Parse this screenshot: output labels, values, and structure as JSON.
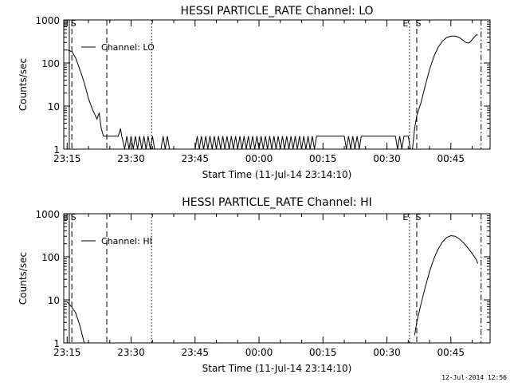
{
  "chart_data": [
    {
      "type": "line",
      "title": "HESSI PARTICLE_RATE Channel: LO",
      "xlabel": "Start Time (11-Jul-14 23:14:10)",
      "ylabel": "Counts/sec",
      "xlim_minutes": [
        0,
        100
      ],
      "ylim": [
        1,
        1000
      ],
      "yscale": "log",
      "x_ticks": [
        {
          "minute": 0,
          "label": "23:15"
        },
        {
          "minute": 15,
          "label": "23:30"
        },
        {
          "minute": 30,
          "label": "23:45"
        },
        {
          "minute": 45,
          "label": "00:00"
        },
        {
          "minute": 60,
          "label": "00:15"
        },
        {
          "minute": 75,
          "label": "00:30"
        },
        {
          "minute": 90,
          "label": "00:45"
        }
      ],
      "y_ticks": [
        {
          "value": 1,
          "label": "1"
        },
        {
          "value": 10,
          "label": "10"
        },
        {
          "value": 100,
          "label": "100"
        },
        {
          "value": 1000,
          "label": "1000"
        }
      ],
      "legend": {
        "label": "Channel: LO",
        "position": "top-left"
      },
      "markers": [
        {
          "minute": -0.3,
          "style": "solid",
          "label": "E"
        },
        {
          "minute": 0.3,
          "style": "dashed",
          "label": "S"
        },
        {
          "minute": 8.5,
          "style": "dashed",
          "label": ""
        },
        {
          "minute": 19.0,
          "style": "dotted",
          "label": ""
        },
        {
          "minute": 79.5,
          "style": "dotted",
          "label": "E"
        },
        {
          "minute": 81.2,
          "style": "dashed",
          "label": "S"
        },
        {
          "minute": 96.3,
          "style": "dashdot",
          "label": ""
        }
      ],
      "series": [
        {
          "points": [
            [
              0,
              200
            ],
            [
              0.5,
              195
            ],
            [
              1.2,
              180
            ],
            [
              2,
              130
            ],
            [
              3,
              70
            ],
            [
              4,
              35
            ],
            [
              5,
              15
            ],
            [
              6,
              8
            ],
            [
              7,
              5
            ],
            [
              7.5,
              7
            ],
            [
              8,
              3
            ],
            [
              8.5,
              2
            ],
            [
              10,
              2
            ],
            [
              11,
              2
            ],
            [
              12,
              2
            ],
            [
              12.5,
              3
            ],
            [
              12.8,
              2
            ],
            [
              13.5,
              1
            ],
            [
              14,
              2
            ],
            [
              14.5,
              1
            ],
            [
              15,
              2
            ],
            [
              15.5,
              1
            ],
            [
              16,
              2
            ],
            [
              16.5,
              1
            ],
            [
              17,
              2
            ],
            [
              17.5,
              1
            ],
            [
              18,
              2
            ],
            [
              18.5,
              1
            ],
            [
              19,
              2
            ],
            [
              19.5,
              1
            ],
            [
              20,
              2
            ],
            [
              20.5,
              1
            ],
            [
              21,
              1
            ],
            [
              22,
              1
            ],
            [
              22.5,
              2
            ],
            [
              23,
              1
            ],
            [
              23.5,
              2
            ],
            [
              24,
              1
            ],
            [
              25,
              1
            ],
            [
              26,
              1
            ],
            [
              27,
              1
            ],
            [
              28,
              1
            ],
            [
              29,
              1
            ],
            [
              30,
              1
            ],
            [
              30.5,
              2
            ],
            [
              31,
              1
            ],
            [
              31.5,
              2
            ],
            [
              32,
              1
            ],
            [
              32.5,
              2
            ],
            [
              33,
              1
            ],
            [
              33.5,
              2
            ],
            [
              34,
              1
            ],
            [
              34.5,
              2
            ],
            [
              35,
              1
            ],
            [
              35.5,
              2
            ],
            [
              36,
              1
            ],
            [
              36.5,
              2
            ],
            [
              37,
              1
            ],
            [
              37.5,
              2
            ],
            [
              38,
              1
            ],
            [
              38.5,
              2
            ],
            [
              39,
              1
            ],
            [
              39.5,
              2
            ],
            [
              40,
              1
            ],
            [
              40.5,
              2
            ],
            [
              41,
              1
            ],
            [
              41.5,
              2
            ],
            [
              42,
              1
            ],
            [
              42.5,
              2
            ],
            [
              43,
              1
            ],
            [
              43.5,
              2
            ],
            [
              44,
              1
            ],
            [
              44.5,
              2
            ],
            [
              45,
              1
            ],
            [
              45.5,
              2
            ],
            [
              46,
              1
            ],
            [
              46.5,
              2
            ],
            [
              47,
              1
            ],
            [
              47.5,
              2
            ],
            [
              48,
              1
            ],
            [
              48.5,
              2
            ],
            [
              49,
              1
            ],
            [
              49.5,
              2
            ],
            [
              50,
              1
            ],
            [
              50.5,
              2
            ],
            [
              51,
              1
            ],
            [
              51.5,
              2
            ],
            [
              52,
              1
            ],
            [
              52.5,
              2
            ],
            [
              53,
              1
            ],
            [
              53.5,
              2
            ],
            [
              54,
              1
            ],
            [
              54.5,
              2
            ],
            [
              55,
              1
            ],
            [
              55.5,
              2
            ],
            [
              56,
              1
            ],
            [
              56.5,
              2
            ],
            [
              57,
              1
            ],
            [
              57.5,
              2
            ],
            [
              58,
              1
            ],
            [
              58.5,
              2
            ],
            [
              59,
              2
            ],
            [
              60,
              2
            ],
            [
              61,
              2
            ],
            [
              62,
              2
            ],
            [
              63,
              2
            ],
            [
              64,
              2
            ],
            [
              65,
              2
            ],
            [
              65.5,
              1
            ],
            [
              66,
              2
            ],
            [
              66.5,
              1
            ],
            [
              67,
              2
            ],
            [
              67.5,
              1
            ],
            [
              68,
              2
            ],
            [
              68.5,
              1
            ],
            [
              69,
              2
            ],
            [
              70,
              2
            ],
            [
              71,
              2
            ],
            [
              72,
              2
            ],
            [
              73,
              2
            ],
            [
              74,
              2
            ],
            [
              75,
              2
            ],
            [
              76,
              2
            ],
            [
              77,
              2
            ],
            [
              77.5,
              1
            ],
            [
              78,
              2
            ],
            [
              78.5,
              1
            ],
            [
              79,
              2
            ],
            [
              80,
              2
            ],
            [
              80.5,
              1
            ],
            [
              81,
              1
            ],
            [
              81.5,
              3
            ],
            [
              82,
              6
            ],
            [
              83,
              12
            ],
            [
              84,
              30
            ],
            [
              85,
              70
            ],
            [
              86,
              140
            ],
            [
              87,
              230
            ],
            [
              88,
              320
            ],
            [
              89,
              390
            ],
            [
              90,
              420
            ],
            [
              91,
              420
            ],
            [
              92,
              390
            ],
            [
              93,
              330
            ],
            [
              93.5,
              300
            ],
            [
              94,
              290
            ],
            [
              94.5,
              300
            ],
            [
              95,
              350
            ],
            [
              95.5,
              400
            ],
            [
              96,
              450
            ],
            [
              96.3,
              450
            ]
          ]
        }
      ]
    },
    {
      "type": "line",
      "title": "HESSI PARTICLE_RATE Channel: HI",
      "xlabel": "Start Time (11-Jul-14 23:14:10)",
      "ylabel": "Counts/sec",
      "xlim_minutes": [
        0,
        100
      ],
      "ylim": [
        1,
        1000
      ],
      "yscale": "log",
      "x_ticks": [
        {
          "minute": 0,
          "label": "23:15"
        },
        {
          "minute": 15,
          "label": "23:30"
        },
        {
          "minute": 30,
          "label": "23:45"
        },
        {
          "minute": 45,
          "label": "00:00"
        },
        {
          "minute": 60,
          "label": "00:15"
        },
        {
          "minute": 75,
          "label": "00:30"
        },
        {
          "minute": 90,
          "label": "00:45"
        }
      ],
      "y_ticks": [
        {
          "value": 1,
          "label": "1"
        },
        {
          "value": 10,
          "label": "10"
        },
        {
          "value": 100,
          "label": "100"
        },
        {
          "value": 1000,
          "label": "1000"
        }
      ],
      "legend": {
        "label": "Channel: HI",
        "position": "top-left"
      },
      "markers": [
        {
          "minute": -0.3,
          "style": "solid",
          "label": "E"
        },
        {
          "minute": 0.3,
          "style": "dashed",
          "label": "S"
        },
        {
          "minute": 8.5,
          "style": "dashed",
          "label": ""
        },
        {
          "minute": 19.0,
          "style": "dotted",
          "label": ""
        },
        {
          "minute": 79.5,
          "style": "dotted",
          "label": "E"
        },
        {
          "minute": 81.2,
          "style": "dashed",
          "label": "S"
        },
        {
          "minute": 96.3,
          "style": "dashdot",
          "label": ""
        }
      ],
      "series": [
        {
          "points_segments": [
            [
              [
                0,
                9
              ],
              [
                1,
                7
              ],
              [
                2,
                5
              ],
              [
                3,
                2.5
              ],
              [
                4,
                1
              ]
            ],
            [
              [
                81.5,
                1.5
              ],
              [
                82,
                3
              ],
              [
                83,
                8
              ],
              [
                84,
                20
              ],
              [
                85,
                45
              ],
              [
                86,
                90
              ],
              [
                87,
                150
              ],
              [
                88,
                220
              ],
              [
                89,
                280
              ],
              [
                90,
                310
              ],
              [
                91,
                300
              ],
              [
                92,
                260
              ],
              [
                93,
                210
              ],
              [
                94,
                160
              ],
              [
                95,
                120
              ],
              [
                96,
                85
              ],
              [
                96.3,
                70
              ]
            ]
          ]
        }
      ]
    }
  ],
  "footer": {
    "timestamp": "12-Jul-2014 12:56"
  }
}
